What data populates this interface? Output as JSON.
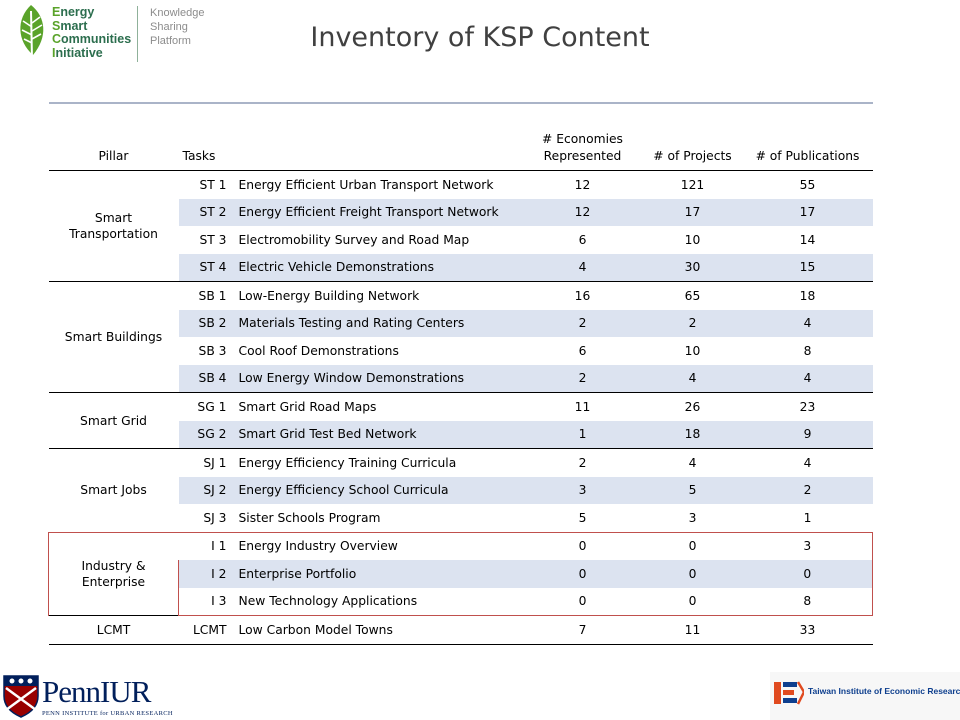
{
  "header": {
    "logo_lines": [
      {
        "cap": "E",
        "rest": "nergy"
      },
      {
        "cap": "S",
        "rest": "mart"
      },
      {
        "cap": "C",
        "rest": "ommunities"
      },
      {
        "cap": "I",
        "rest": "nitiative"
      }
    ],
    "tagline": [
      "Knowledge",
      "Sharing",
      "Platform"
    ],
    "title": "Inventory of KSP Content"
  },
  "table": {
    "headers": {
      "pillar": "Pillar",
      "tasks": "Tasks",
      "name": "",
      "economies": "# Economies Represented",
      "projects": "# of Projects",
      "publications": "# of Publications"
    },
    "groups": [
      {
        "pillar": "Smart Transportation",
        "rows": [
          {
            "task": "ST 1",
            "name": "Energy Efficient Urban Transport Network",
            "economies": "12",
            "projects": "121",
            "publications": "55"
          },
          {
            "task": "ST 2",
            "name": "Energy Efficient Freight Transport Network",
            "economies": "12",
            "projects": "17",
            "publications": "17"
          },
          {
            "task": "ST 3",
            "name": "Electromobility Survey and Road Map",
            "economies": "6",
            "projects": "10",
            "publications": "14"
          },
          {
            "task": "ST 4",
            "name": "Electric Vehicle Demonstrations",
            "economies": "4",
            "projects": "30",
            "publications": "15"
          }
        ]
      },
      {
        "pillar": "Smart Buildings",
        "rows": [
          {
            "task": "SB 1",
            "name": "Low-Energy Building Network",
            "economies": "16",
            "projects": "65",
            "publications": "18"
          },
          {
            "task": "SB 2",
            "name": "Materials Testing and Rating Centers",
            "economies": "2",
            "projects": "2",
            "publications": "4"
          },
          {
            "task": "SB 3",
            "name": "Cool Roof Demonstrations",
            "economies": "6",
            "projects": "10",
            "publications": "8"
          },
          {
            "task": "SB 4",
            "name": "Low Energy Window Demonstrations",
            "economies": "2",
            "projects": "4",
            "publications": "4"
          }
        ]
      },
      {
        "pillar": "Smart Grid",
        "rows": [
          {
            "task": "SG 1",
            "name": "Smart Grid Road Maps",
            "economies": "11",
            "projects": "26",
            "publications": "23"
          },
          {
            "task": "SG 2",
            "name": "Smart Grid Test Bed Network",
            "economies": "1",
            "projects": "18",
            "publications": "9"
          }
        ]
      },
      {
        "pillar": "Smart Jobs",
        "rows": [
          {
            "task": "SJ 1",
            "name": "Energy Efficiency Training Curricula",
            "economies": "2",
            "projects": "4",
            "publications": "4"
          },
          {
            "task": "SJ 2",
            "name": "Energy Efficiency School Curricula",
            "economies": "3",
            "projects": "5",
            "publications": "2"
          },
          {
            "task": "SJ 3",
            "name": "Sister Schools Program",
            "economies": "5",
            "projects": "3",
            "publications": "1"
          }
        ]
      },
      {
        "pillar": "Industry & Enterprise",
        "rows": [
          {
            "task": "I 1",
            "name": "Energy Industry Overview",
            "economies": "0",
            "projects": "0",
            "publications": "3"
          },
          {
            "task": "I 2",
            "name": "Enterprise Portfolio",
            "economies": "0",
            "projects": "0",
            "publications": "0"
          },
          {
            "task": "I 3",
            "name": "New Technology Applications",
            "economies": "0",
            "projects": "0",
            "publications": "8"
          }
        ]
      },
      {
        "pillar": "LCMT",
        "rows": [
          {
            "task": "LCMT",
            "name": "Low Carbon Model Towns",
            "economies": "7",
            "projects": "11",
            "publications": "33"
          }
        ]
      }
    ]
  },
  "footer": {
    "penn_word": "Penn",
    "penn_iur": "IUR",
    "penn_sub": "PENN INSTITUTE for URBAN RESEARCH",
    "tier_text": "Taiwan Institute of Economic Research"
  },
  "colors": {
    "row_shade": "#dce3f0",
    "highlight_border": "#c0504d",
    "logo_green": "#5aa32a",
    "penn_blue": "#011f5b",
    "penn_red": "#990000"
  }
}
